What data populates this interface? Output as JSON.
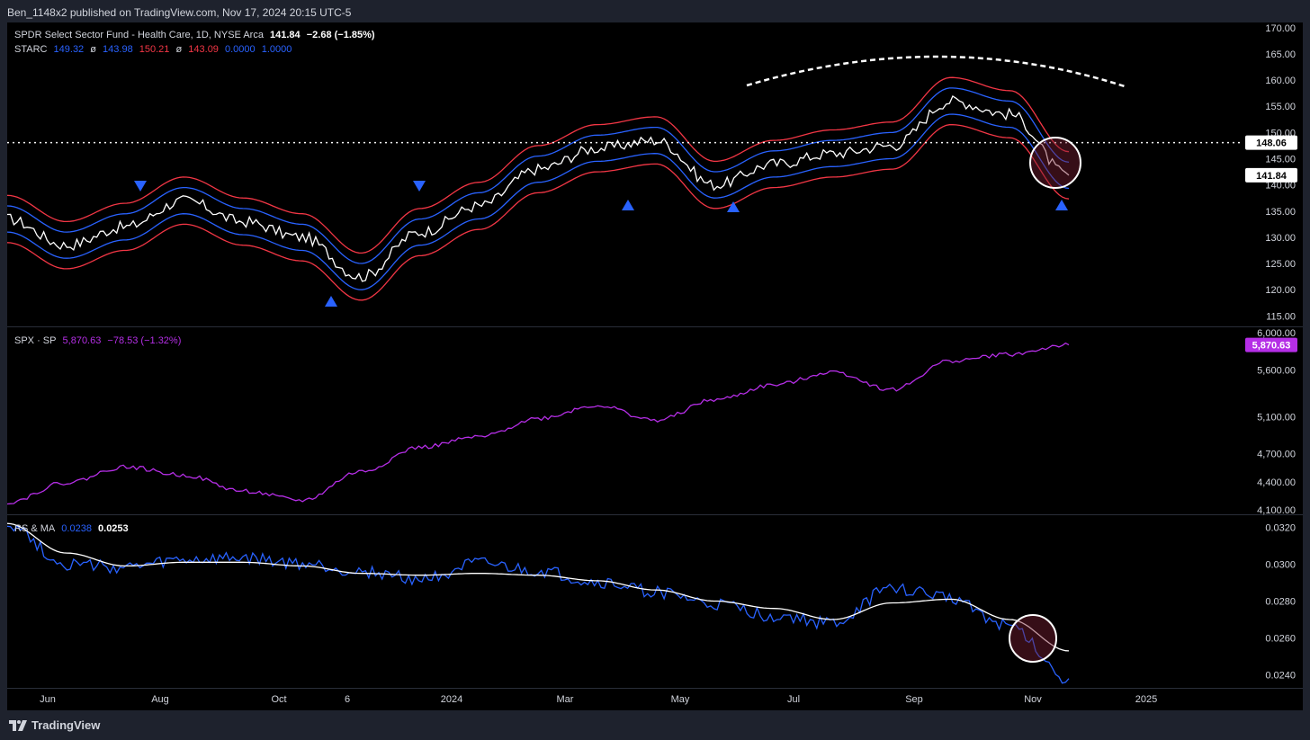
{
  "header": {
    "published_text": "Ben_1148x2 published on TradingView.com, Nov 17, 2024 20:15 UTC-5"
  },
  "panes": {
    "main": {
      "title": "SPDR Select Sector Fund - Health Care, 1D, NYSE Arca",
      "last": "141.84",
      "change": "−2.68 (−1.85%)",
      "indicator_name": "STARC",
      "indicator_values": [
        "149.32",
        "143.98",
        "150.21",
        "143.09",
        "0.0000",
        "1.0000"
      ],
      "indicator_colors": [
        "#2962ff",
        "#2962ff",
        "#f23645",
        "#f23645",
        "#2962ff",
        "#2962ff"
      ],
      "y_ticks": [
        "170.00",
        "165.00",
        "160.00",
        "155.00",
        "150.00",
        "145.00",
        "140.00",
        "135.00",
        "130.00",
        "125.00",
        "120.00",
        "115.00"
      ],
      "hline_label": "148.06",
      "last_label": "141.84"
    },
    "spx": {
      "title": "SPX · SP",
      "value": "5,870.63",
      "change": "−78.53 (−1.32%)",
      "color": "#b52ee6",
      "y_ticks": [
        "6,000.00",
        "5,600.00",
        "5,100.00",
        "4,700.00",
        "4,400.00",
        "4,100.00"
      ],
      "last_label": "5,870.63"
    },
    "rs": {
      "title": "RS & MA",
      "rs_value": "0.0238",
      "ma_value": "0.0253",
      "rs_color": "#2962ff",
      "ma_color": "#ffffff",
      "y_ticks": [
        "0.0320",
        "0.0300",
        "0.0280",
        "0.0260",
        "0.0240"
      ]
    }
  },
  "x_axis": {
    "labels": [
      "Jun",
      "Aug",
      "Oct",
      "6",
      "2024",
      "Mar",
      "May",
      "Jul",
      "Sep",
      "Nov",
      "2025"
    ]
  },
  "footer": {
    "logo_text": "TradingView"
  },
  "chart_data": [
    {
      "type": "line",
      "title": "SPDR Select Sector Fund - Health Care, 1D, NYSE Arca",
      "x": [
        "2023-05",
        "2023-06",
        "2023-07",
        "2023-08",
        "2023-09",
        "2023-10",
        "2023-11",
        "2023-12",
        "2024-01",
        "2024-02",
        "2024-03",
        "2024-04",
        "2024-05",
        "2024-06",
        "2024-07",
        "2024-08",
        "2024-09",
        "2024-10",
        "2024-11"
      ],
      "series": [
        {
          "name": "close",
          "values": [
            133.5,
            128.5,
            132.0,
            137.0,
            133.0,
            130.0,
            122.5,
            131.0,
            136.0,
            143.0,
            147.0,
            148.5,
            140.0,
            144.0,
            146.0,
            147.5,
            156.0,
            153.5,
            141.84
          ]
        }
      ],
      "ylim": [
        113,
        171
      ]
    },
    {
      "type": "line",
      "title": "SPX · SP",
      "x": [
        "2023-05",
        "2023-06",
        "2023-07",
        "2023-08",
        "2023-09",
        "2023-10",
        "2023-11",
        "2023-12",
        "2024-01",
        "2024-02",
        "2024-03",
        "2024-04",
        "2024-05",
        "2024-06",
        "2024-07",
        "2024-08",
        "2024-09",
        "2024-10",
        "2024-11"
      ],
      "series": [
        {
          "name": "SPX",
          "values": [
            4180,
            4390,
            4560,
            4470,
            4300,
            4200,
            4510,
            4770,
            4880,
            5080,
            5220,
            5060,
            5280,
            5440,
            5580,
            5390,
            5700,
            5770,
            5870.63
          ]
        }
      ],
      "ylim": [
        4050,
        6050
      ]
    },
    {
      "type": "line",
      "title": "RS & MA",
      "x": [
        "2023-05",
        "2023-06",
        "2023-07",
        "2023-08",
        "2023-09",
        "2023-10",
        "2023-11",
        "2023-12",
        "2024-01",
        "2024-02",
        "2024-03",
        "2024-04",
        "2024-05",
        "2024-06",
        "2024-07",
        "2024-08",
        "2024-09",
        "2024-10",
        "2024-11"
      ],
      "series": [
        {
          "name": "RS",
          "values": [
            0.0322,
            0.03,
            0.0298,
            0.0302,
            0.0303,
            0.03,
            0.0296,
            0.0292,
            0.03,
            0.0296,
            0.029,
            0.0285,
            0.0278,
            0.0272,
            0.0268,
            0.0287,
            0.0282,
            0.0266,
            0.0238
          ]
        },
        {
          "name": "MA",
          "values": [
            0.0322,
            0.0306,
            0.0299,
            0.0301,
            0.0301,
            0.0299,
            0.0295,
            0.0294,
            0.0295,
            0.0294,
            0.0291,
            0.0286,
            0.028,
            0.0276,
            0.027,
            0.0279,
            0.0281,
            0.027,
            0.0253
          ]
        }
      ],
      "ylim": [
        0.0233,
        0.0326
      ]
    }
  ]
}
